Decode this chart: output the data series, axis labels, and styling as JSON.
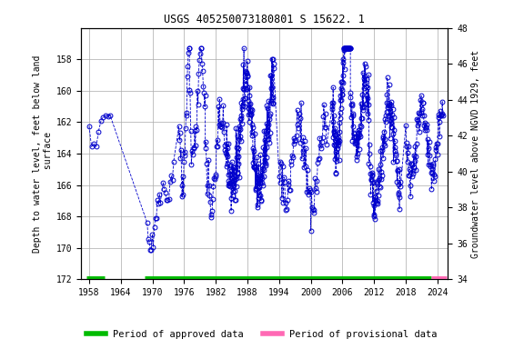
{
  "title": "USGS 405250073180801 S 15622. 1",
  "xlabel_years": [
    1958,
    1964,
    1970,
    1976,
    1982,
    1988,
    1994,
    2000,
    2006,
    2012,
    2018,
    2024
  ],
  "ylim_left_bottom": 172,
  "ylim_left_top": 156,
  "ylim_right_bottom": 34,
  "ylim_right_top": 48,
  "ylabel_left": "Depth to water level, feet below land\n surface",
  "ylabel_right": "Groundwater level above NGVD 1929, feet",
  "yticks_left": [
    158,
    160,
    162,
    164,
    166,
    168,
    170,
    172
  ],
  "yticks_right": [
    34,
    36,
    38,
    40,
    42,
    44,
    46,
    48
  ],
  "line_color": "#0000cc",
  "marker_color": "#0000cc",
  "bg_color": "#ffffff",
  "grid_color": "#aaaaaa",
  "approved_color": "#00bb00",
  "provisional_color": "#ff69b4",
  "approved_seg1_start": 1957.5,
  "approved_seg1_end": 1961.0,
  "approved_seg2_start": 1968.5,
  "approved_seg2_end": 2022.8,
  "provisional_start": 2022.8,
  "provisional_end": 2025.8,
  "xlim_left": 1956.5,
  "xlim_right": 2026.0,
  "bar_y": 172.0,
  "legend_approved": "Period of approved data",
  "legend_provisional": "Period of provisional data"
}
